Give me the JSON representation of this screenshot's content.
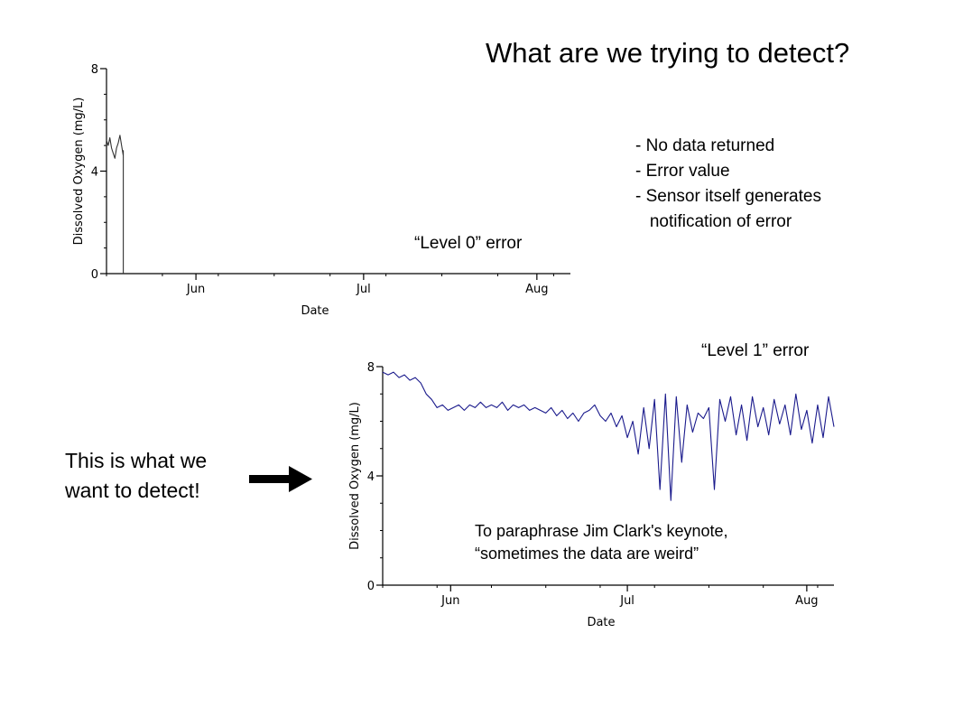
{
  "slide": {
    "title": "What are we trying to detect?",
    "bullets": [
      "- No data returned",
      "- Error value",
      "- Sensor itself generates",
      "   notification of error"
    ],
    "level0_label": "“Level 0” error",
    "level1_label": "“Level 1” error",
    "callout": [
      "This is what we",
      "want to detect!"
    ],
    "quote": [
      "To paraphrase Jim Clark's keynote,",
      "“sometimes the data are weird”"
    ]
  },
  "chart_data": [
    {
      "type": "line",
      "title": "",
      "xlabel": "Date",
      "ylabel": "Dissolved Oxygen (mg/L)",
      "x_range_days": [
        0,
        83
      ],
      "xticks": [
        {
          "label": "Jun",
          "day": 16
        },
        {
          "label": "Jul",
          "day": 46
        },
        {
          "label": "Aug",
          "day": 77
        }
      ],
      "ylim": [
        0,
        8
      ],
      "yticks": [
        0,
        4,
        8
      ],
      "series": [
        {
          "color": "#333333",
          "x_day": [
            0,
            0.3,
            0.6,
            0.9,
            1.2,
            1.5,
            1.8,
            2.1,
            2.4,
            2.7,
            3.0,
            3.0,
            3.0
          ],
          "y": [
            5.2,
            5.0,
            5.3,
            4.9,
            4.7,
            4.5,
            4.9,
            5.1,
            5.4,
            5.0,
            4.6,
            4.8,
            0
          ]
        }
      ]
    },
    {
      "type": "line",
      "title": "",
      "xlabel": "Date",
      "ylabel": "Dissolved Oxygen (mg/L)",
      "x_range_days": [
        0,
        83
      ],
      "xticks": [
        {
          "label": "Jun",
          "day": 12.5
        },
        {
          "label": "Jul",
          "day": 45
        },
        {
          "label": "Aug",
          "day": 78
        }
      ],
      "ylim": [
        0,
        8
      ],
      "yticks": [
        0,
        4,
        8
      ],
      "series": [
        {
          "color": "#1a1a8c",
          "x_day": [
            0,
            1,
            2,
            3,
            4,
            5,
            6,
            7,
            8,
            9,
            10,
            11,
            12,
            13,
            14,
            15,
            16,
            17,
            18,
            19,
            20,
            21,
            22,
            23,
            24,
            25,
            26,
            27,
            28,
            29,
            30,
            31,
            32,
            33,
            34,
            35,
            36,
            37,
            38,
            39,
            40,
            41,
            42,
            43,
            44,
            45,
            46,
            47,
            48,
            49,
            50,
            51,
            52,
            53,
            54,
            55,
            56,
            57,
            58,
            59,
            60,
            61,
            62,
            63,
            64,
            65,
            66,
            67,
            68,
            69,
            70,
            71,
            72,
            73,
            74,
            75,
            76,
            77,
            78,
            79,
            80,
            81,
            82,
            83
          ],
          "y": [
            7.8,
            7.7,
            7.8,
            7.6,
            7.7,
            7.5,
            7.6,
            7.4,
            7.0,
            6.8,
            6.5,
            6.6,
            6.4,
            6.5,
            6.6,
            6.4,
            6.6,
            6.5,
            6.7,
            6.5,
            6.6,
            6.5,
            6.7,
            6.4,
            6.6,
            6.5,
            6.6,
            6.4,
            6.5,
            6.4,
            6.3,
            6.5,
            6.2,
            6.4,
            6.1,
            6.3,
            6.0,
            6.3,
            6.4,
            6.6,
            6.2,
            6.0,
            6.3,
            5.8,
            6.2,
            5.4,
            6.0,
            4.8,
            6.5,
            5.0,
            6.8,
            3.5,
            7.0,
            3.1,
            6.9,
            4.5,
            6.6,
            5.6,
            6.3,
            6.1,
            6.5,
            3.5,
            6.8,
            6.0,
            6.9,
            5.5,
            6.6,
            5.3,
            6.9,
            5.8,
            6.5,
            5.5,
            6.8,
            5.9,
            6.6,
            5.5,
            7.0,
            5.7,
            6.4,
            5.2,
            6.6,
            5.4,
            6.9,
            5.8
          ]
        }
      ]
    }
  ]
}
